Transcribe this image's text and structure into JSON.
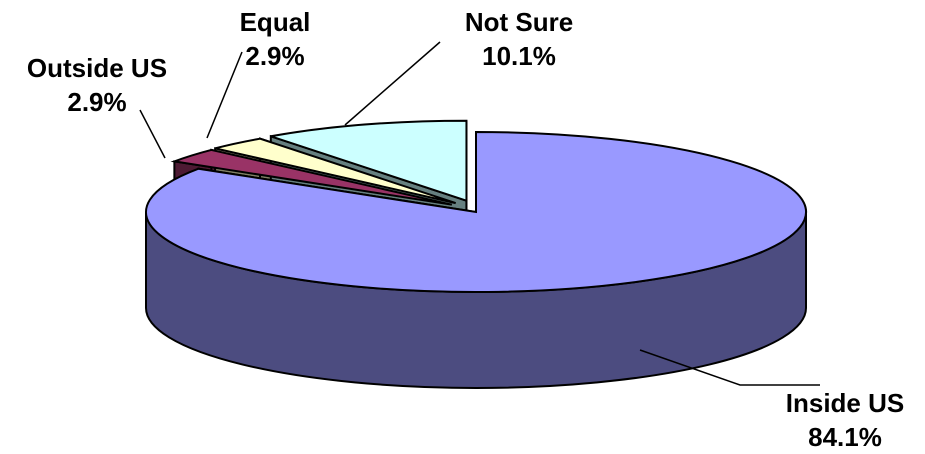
{
  "chart_data": {
    "type": "pie",
    "style": "3d-exploded",
    "title": "",
    "slices": [
      {
        "label": "Inside US",
        "value": 84.1,
        "display": "84.1%",
        "color": "#9999FF",
        "side_color": "#4C4C80"
      },
      {
        "label": "Outside US",
        "value": 2.9,
        "display": "2.9%",
        "color": "#993366",
        "side_color": "#4D1A33"
      },
      {
        "label": "Equal",
        "value": 2.9,
        "display": "2.9%",
        "color": "#FFFFCC",
        "side_color": "#808066"
      },
      {
        "label": "Not Sure",
        "value": 10.1,
        "display": "10.1%",
        "color": "#CCFFFF",
        "side_color": "#668080"
      }
    ],
    "legend": "none"
  }
}
